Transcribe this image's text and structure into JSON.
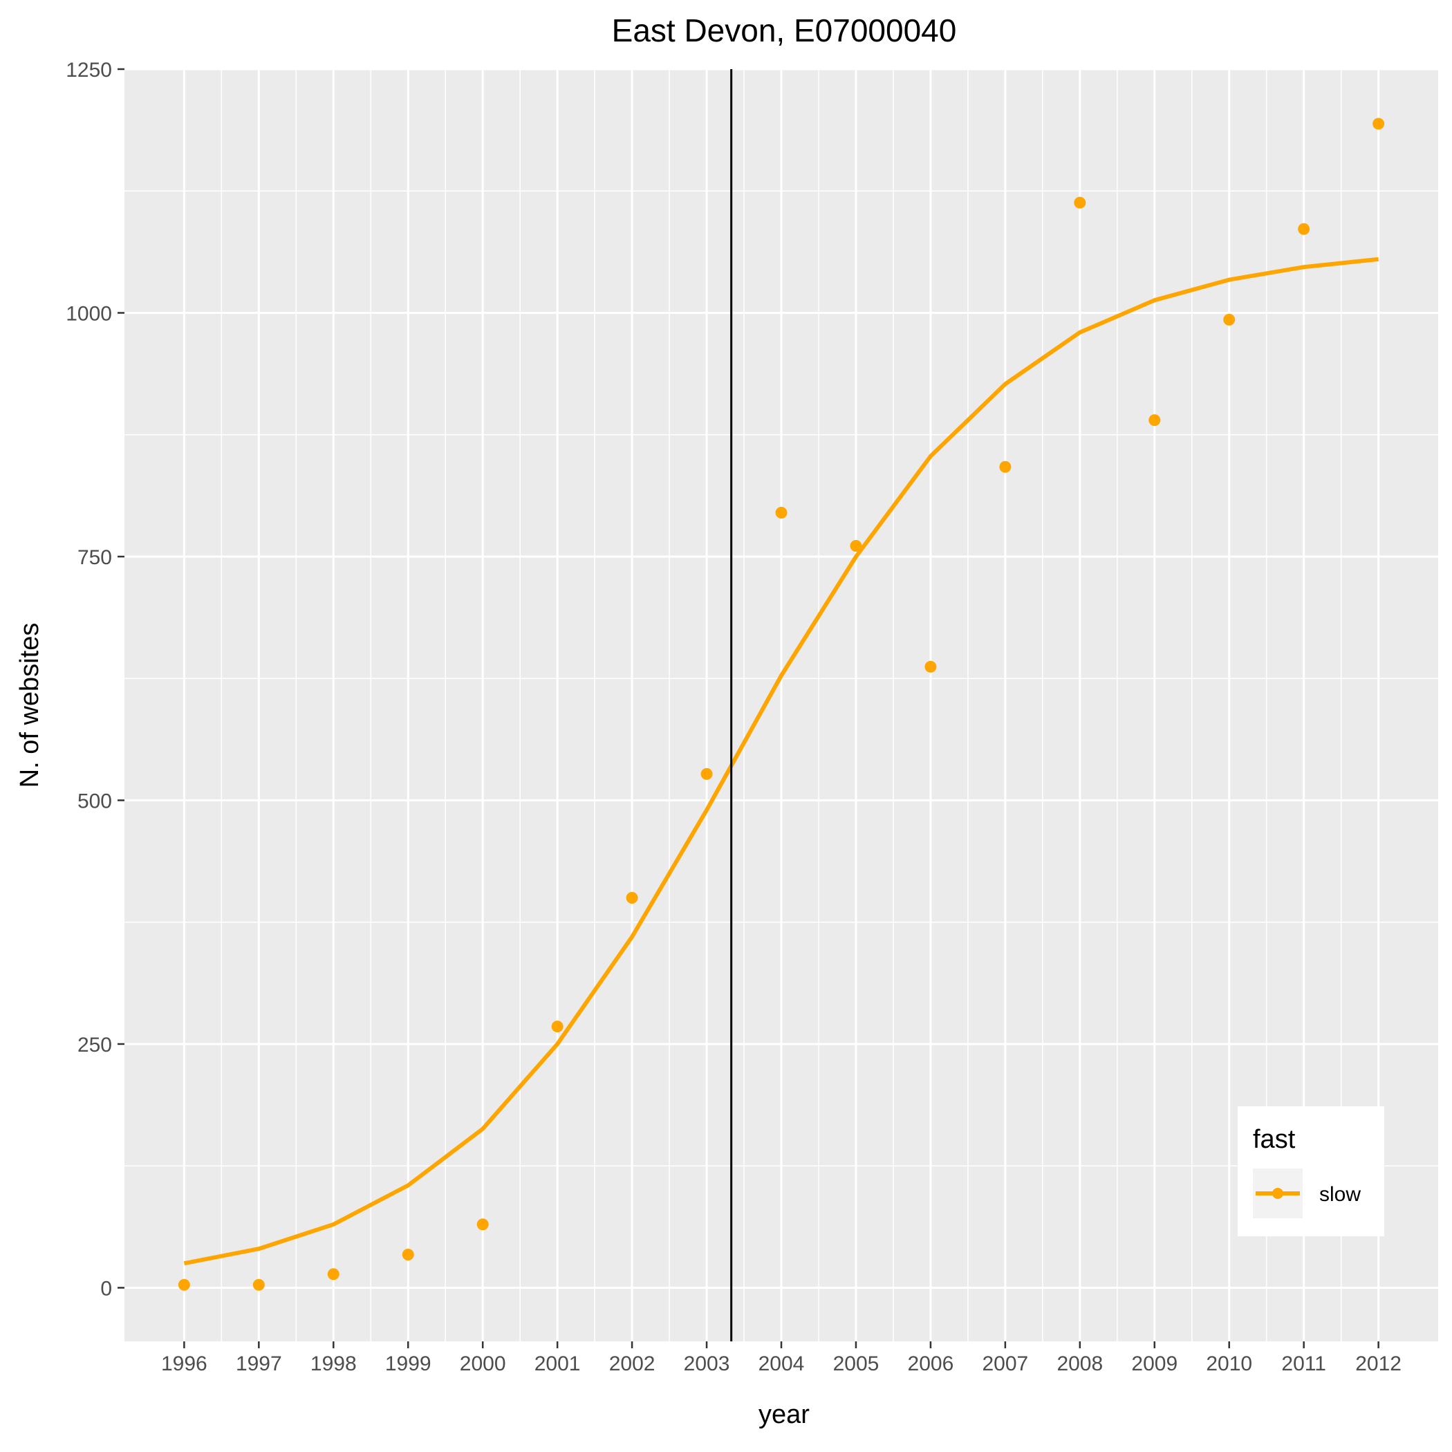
{
  "chart_data": {
    "type": "line",
    "title": "East Devon, E07000040",
    "xlabel": "year",
    "ylabel": "N. of websites",
    "x": [
      1996,
      1997,
      1998,
      1999,
      2000,
      2001,
      2002,
      2003,
      2004,
      2005,
      2006,
      2007,
      2008,
      2009,
      2010,
      2011,
      2012
    ],
    "x_tick_labels": [
      "1996",
      "1997",
      "1998",
      "1999",
      "2000",
      "2001",
      "2002",
      "2003",
      "2004",
      "2005",
      "2006",
      "2007",
      "2008",
      "2009",
      "2010",
      "2011",
      "2012"
    ],
    "y_ticks": [
      0,
      250,
      500,
      750,
      1000,
      1250
    ],
    "y_tick_labels": [
      "0",
      "250",
      "500",
      "750",
      "1000",
      "1250"
    ],
    "xlim": [
      1995.2,
      2012.8
    ],
    "ylim": [
      -55,
      1250
    ],
    "vline_x": 2003.33,
    "series": [
      {
        "name": "slow",
        "points": [
          3,
          3,
          14,
          34,
          65,
          268,
          400,
          527,
          795,
          761,
          637,
          842,
          1113,
          890,
          993,
          1086,
          1194
        ],
        "fitted": [
          25,
          40,
          65,
          105,
          163,
          250,
          360,
          490,
          628,
          750,
          853,
          927,
          980,
          1013,
          1034,
          1047,
          1055
        ]
      }
    ],
    "legend": {
      "title": "fast",
      "position": "bottom-right",
      "entries": [
        "slow"
      ]
    },
    "grid": true,
    "colors": {
      "series": "#FFA500",
      "panel": "#EBEBEB",
      "grid": "#FFFFFF",
      "vline": "#000000"
    }
  }
}
